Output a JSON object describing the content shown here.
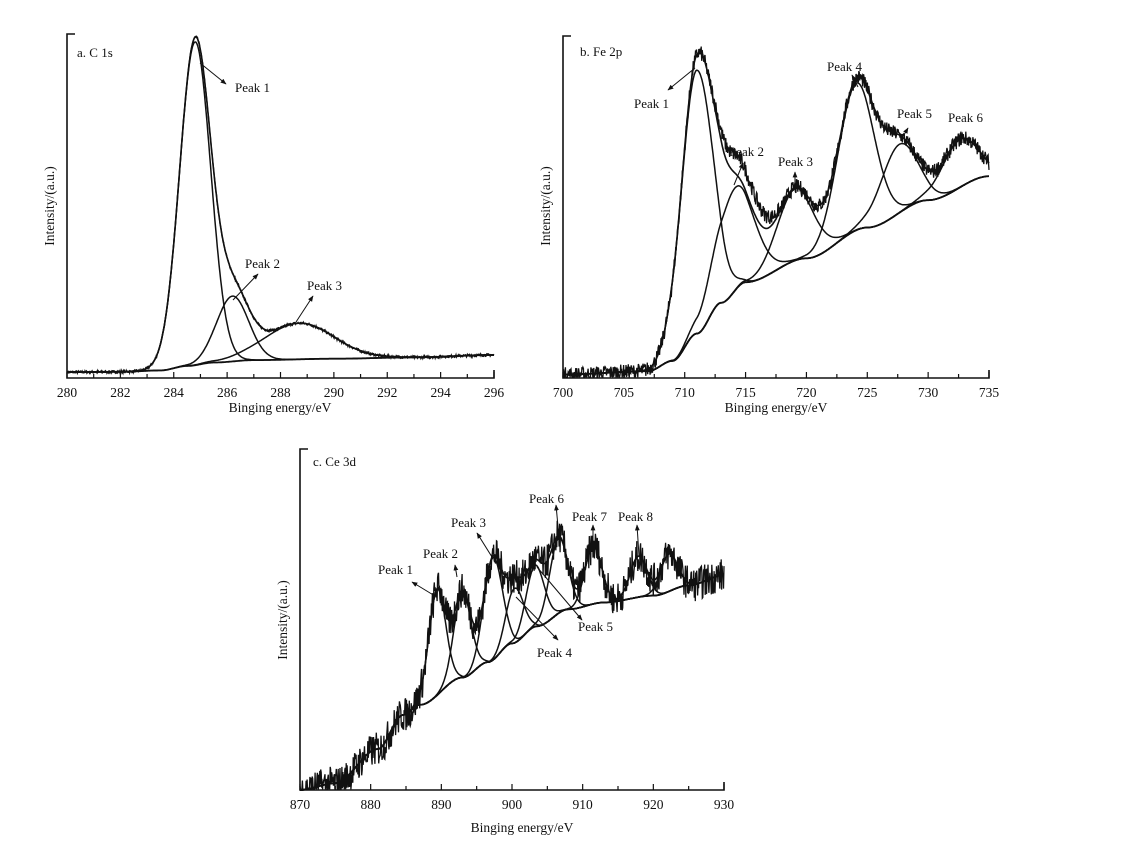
{
  "chart_data": [
    {
      "type": "line",
      "panel_label": "a. C 1s",
      "xlabel": "Binging energy/eV",
      "ylabel": "Intensity/(a.u.)",
      "xlim": [
        280,
        296
      ],
      "ylim": [
        0,
        100
      ],
      "xticks": [
        280,
        282,
        284,
        286,
        288,
        290,
        292,
        294,
        296
      ],
      "grid": false,
      "baseline": [
        [
          280,
          1.7
        ],
        [
          282,
          1.8
        ],
        [
          283.5,
          2.2
        ],
        [
          284.5,
          3.5
        ],
        [
          285.5,
          4.5
        ],
        [
          287,
          5.2
        ],
        [
          290,
          5.6
        ],
        [
          293,
          6
        ],
        [
          296,
          6.7
        ]
      ],
      "peaks": [
        {
          "name": "Peak 1",
          "center": 284.8,
          "height": 94,
          "sigma": 0.58
        },
        {
          "name": "Peak 2",
          "center": 286.2,
          "height": 19,
          "sigma": 0.6
        },
        {
          "name": "Peak 3",
          "center": 288.7,
          "height": 10.5,
          "sigma": 1.3
        }
      ],
      "annotations": [
        "Peak 1",
        "Peak 2",
        "Peak 3"
      ]
    },
    {
      "type": "line",
      "panel_label": "b. Fe 2p",
      "xlabel": "Binging energy/eV",
      "ylabel": "Intensity/(a.u.)",
      "xlim": [
        700,
        735
      ],
      "ylim": [
        0,
        100
      ],
      "xticks": [
        700,
        705,
        710,
        715,
        720,
        725,
        730,
        735
      ],
      "grid": false,
      "baseline": [
        [
          700,
          1
        ],
        [
          707,
          2
        ],
        [
          709,
          5
        ],
        [
          711,
          13
        ],
        [
          713,
          22
        ],
        [
          715,
          28
        ],
        [
          720,
          35
        ],
        [
          725,
          44
        ],
        [
          730,
          52
        ],
        [
          735,
          59
        ]
      ],
      "peaks": [
        {
          "name": "Peak 1",
          "center": 711.0,
          "height": 77,
          "sigma": 1.3
        },
        {
          "name": "Peak 2",
          "center": 714.1,
          "height": 30,
          "sigma": 1.6
        },
        {
          "name": "Peak 3",
          "center": 719.1,
          "height": 21,
          "sigma": 1.5
        },
        {
          "name": "Peak 4",
          "center": 724.1,
          "height": 43,
          "sigma": 1.5
        },
        {
          "name": "Peak 5",
          "center": 727.6,
          "height": 20,
          "sigma": 1.5
        },
        {
          "name": "Peak 6",
          "center": 732.6,
          "height": 14,
          "sigma": 1.5
        }
      ],
      "annotations": [
        "Peak 1",
        "Peak 2",
        "Peak 3",
        "Peak 4",
        "Peak 5",
        "Peak 6"
      ]
    },
    {
      "type": "line",
      "panel_label": "c. Ce 3d",
      "xlabel": "Binging energy/eV",
      "ylabel": "Intensity/(a.u.)",
      "xlim": [
        870,
        930
      ],
      "ylim": [
        0,
        100
      ],
      "xticks": [
        870,
        880,
        890,
        900,
        910,
        920,
        930
      ],
      "grid": false,
      "baseline": [
        [
          870,
          0
        ],
        [
          875,
          2
        ],
        [
          881,
          12
        ],
        [
          884.6,
          22
        ],
        [
          887,
          25
        ],
        [
          893,
          33
        ],
        [
          896.6,
          37.5
        ],
        [
          900,
          43
        ],
        [
          903.5,
          48
        ],
        [
          908,
          53
        ],
        [
          913,
          55
        ],
        [
          920,
          57
        ],
        [
          925,
          60
        ],
        [
          930,
          63
        ]
      ],
      "peaks": [
        {
          "name": "Peak 1",
          "center": 889.4,
          "height": 31,
          "sigma": 1.2
        },
        {
          "name": "Peak 2",
          "center": 893.0,
          "height": 25,
          "sigma": 1.2
        },
        {
          "name": "Peak 3",
          "center": 897.3,
          "height": 30,
          "sigma": 1.3
        },
        {
          "name": "Peak 4",
          "center": 900.4,
          "height": 16,
          "sigma": 1.2
        },
        {
          "name": "Peak 5",
          "center": 903.3,
          "height": 18,
          "sigma": 1.3
        },
        {
          "name": "Peak 6",
          "center": 906.6,
          "height": 22,
          "sigma": 1.3
        },
        {
          "name": "Peak 7",
          "center": 911.5,
          "height": 17,
          "sigma": 1.2
        },
        {
          "name": "Peak 8",
          "center": 917.9,
          "height": 12,
          "sigma": 1.2
        },
        {
          "name": "",
          "center": 922.2,
          "height": 11,
          "sigma": 1.2
        }
      ],
      "annotations": [
        "Peak 1",
        "Peak 2",
        "Peak 3",
        "Peak 4",
        "Peak 5",
        "Peak 6",
        "Peak 7",
        "Peak 8"
      ]
    }
  ]
}
